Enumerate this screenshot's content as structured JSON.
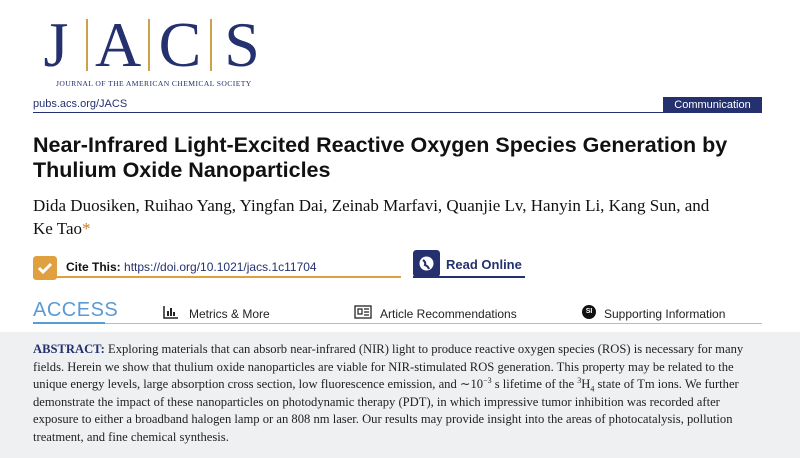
{
  "journal": {
    "letters": [
      "J",
      "A",
      "C",
      "S"
    ],
    "name": "JOURNAL OF THE AMERICAN CHEMICAL SOCIETY",
    "url": "pubs.acs.org/JACS"
  },
  "article_type": "Communication",
  "title": "Near-Infrared Light-Excited Reactive Oxygen Species Generation by Thulium Oxide Nanoparticles",
  "authors": "Dida Duosiken, Ruihao Yang, Yingfan Dai, Zeinab Marfavi, Quanjie Lv, Hanyin Li, Kang Sun, and Ke Tao",
  "corresponding_mark": "*",
  "cite": {
    "label": "Cite This:",
    "link": "https://doi.org/10.1021/jacs.1c11704"
  },
  "read_online": "Read Online",
  "access": {
    "label": "ACCESS",
    "links": [
      "Metrics & More",
      "Article Recommendations",
      "Supporting Information"
    ],
    "si_icon": "SI"
  },
  "abstract": {
    "label": "ABSTRACT:",
    "parts": [
      "Exploring materials that can absorb near-infrared (NIR) light to produce reactive oxygen species (ROS) is necessary for many fields. Herein we show that thulium oxide nanoparticles are viable for NIR-stimulated ROS generation. This property may be related to the unique energy levels, large absorption cross section, low fluorescence emission, and ∼10",
      "−3",
      " s lifetime of the ",
      "3",
      "H",
      "4",
      " state of Tm ions. We further demonstrate the impact of these nanoparticles on photodynamic therapy (PDT), in which impressive tumor inhibition was recorded after exposure to either a broadband halogen lamp or an 808 nm laser. Our results may provide insight into the areas of photocatalysis, pollution treatment, and fine chemical synthesis."
    ]
  }
}
